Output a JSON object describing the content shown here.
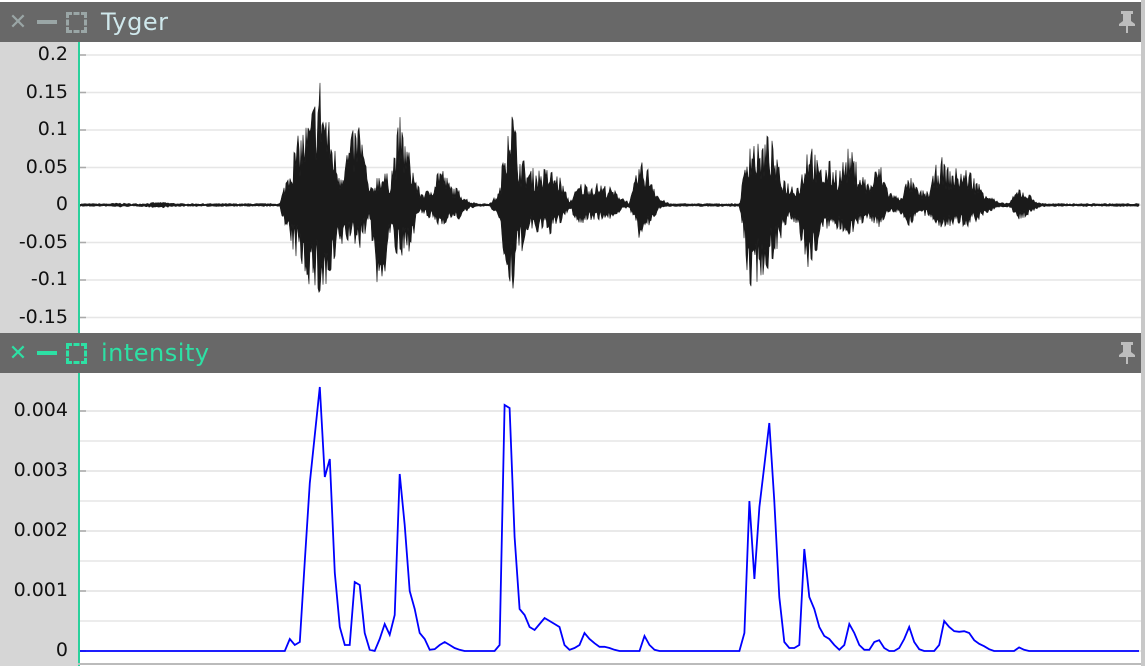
{
  "panels": [
    {
      "title": "Tyger",
      "title_color": "#cfe8ec",
      "icon_color": "#9aa6a6",
      "icons": [
        "close-icon",
        "minimize-icon",
        "maximize-icon",
        "pin-icon"
      ]
    },
    {
      "title": "intensity",
      "title_color": "#2de0a4",
      "icon_color": "#2de0a4",
      "icons": [
        "close-icon",
        "minimize-icon",
        "maximize-icon",
        "pin-icon"
      ]
    }
  ],
  "colors": {
    "header": "#686868",
    "gutter": "#d6d6d6",
    "axis": "#2ad19c",
    "grid": "#e6e6e6",
    "waveform": "#1a1a1a",
    "intensity": "#0000ff"
  },
  "chart_data": [
    {
      "type": "area",
      "ylim": [
        -0.16,
        0.22
      ],
      "yticks": [
        "0.2",
        "0.15",
        "0.1",
        "0.05",
        "0",
        "-0.05",
        "-0.1",
        "-0.15"
      ],
      "ytick_values": [
        0.2,
        0.15,
        0.1,
        0.05,
        0,
        -0.05,
        -0.1,
        -0.15
      ],
      "grid": true,
      "upper": [
        0.002,
        0.002,
        0.002,
        0.002,
        0.003,
        0.002,
        0.002,
        0.003,
        0.004,
        0.003,
        0.002,
        0.002,
        0.002,
        0.002,
        0.002,
        0.002,
        0.002,
        0.002,
        0.002,
        0.002,
        0.002,
        0.06,
        0.1,
        0.12,
        0.18,
        0.11,
        0.05,
        0.09,
        0.12,
        0.02,
        0.05,
        0.04,
        0.12,
        0.07,
        0.02,
        0.02,
        0.06,
        0.03,
        0.02,
        0.005,
        0.002,
        0.002,
        0.02,
        0.16,
        0.07,
        0.05,
        0.05,
        0.05,
        0.04,
        0.005,
        0.03,
        0.03,
        0.03,
        0.025,
        0.015,
        0.003,
        0.06,
        0.05,
        0.01,
        0.002,
        0.002,
        0.002,
        0.002,
        0.002,
        0.002,
        0.002,
        0.002,
        0.1,
        0.08,
        0.1,
        0.05,
        0.03,
        0.03,
        0.1,
        0.05,
        0.06,
        0.05,
        0.08,
        0.05,
        0.03,
        0.06,
        0.02,
        0.01,
        0.04,
        0.02,
        0.02,
        0.07,
        0.05,
        0.05,
        0.05,
        0.03,
        0.015,
        0.003,
        0.003,
        0.025,
        0.015,
        0.003,
        0.002,
        0.002,
        0.002,
        0.002,
        0.002,
        0.002,
        0.002,
        0.002,
        0.002,
        0.002
      ],
      "lower": [
        -0.002,
        -0.002,
        -0.002,
        -0.002,
        -0.003,
        -0.002,
        -0.002,
        -0.003,
        -0.004,
        -0.003,
        -0.002,
        -0.002,
        -0.002,
        -0.002,
        -0.002,
        -0.002,
        -0.002,
        -0.002,
        -0.002,
        -0.002,
        -0.002,
        -0.06,
        -0.08,
        -0.11,
        -0.13,
        -0.12,
        -0.06,
        -0.05,
        -0.06,
        -0.02,
        -0.15,
        -0.04,
        -0.09,
        -0.06,
        -0.01,
        -0.02,
        -0.03,
        -0.02,
        -0.02,
        -0.005,
        -0.002,
        -0.002,
        -0.02,
        -0.15,
        -0.07,
        -0.04,
        -0.04,
        -0.04,
        -0.03,
        -0.005,
        -0.03,
        -0.02,
        -0.02,
        -0.02,
        -0.01,
        -0.003,
        -0.05,
        -0.03,
        -0.005,
        -0.002,
        -0.002,
        -0.002,
        -0.002,
        -0.002,
        -0.002,
        -0.002,
        -0.002,
        -0.12,
        -0.1,
        -0.09,
        -0.05,
        -0.02,
        -0.04,
        -0.1,
        -0.05,
        -0.03,
        -0.04,
        -0.04,
        -0.03,
        -0.02,
        -0.03,
        -0.01,
        -0.01,
        -0.03,
        -0.01,
        -0.02,
        -0.03,
        -0.03,
        -0.03,
        -0.03,
        -0.02,
        -0.01,
        -0.003,
        -0.003,
        -0.02,
        -0.015,
        -0.003,
        -0.002,
        -0.002,
        -0.002,
        -0.002,
        -0.002,
        -0.002,
        -0.002,
        -0.002,
        -0.002,
        -0.002
      ]
    },
    {
      "type": "line",
      "ylim": [
        -0.0002,
        0.0045
      ],
      "yticks": [
        "0.004",
        "0.003",
        "0.002",
        "0.001",
        "0"
      ],
      "ytick_values": [
        0.004,
        0.003,
        0.002,
        0.001,
        0
      ],
      "minor_grid_step": 0.0005,
      "grid": true,
      "values": [
        0,
        0,
        0,
        0,
        0,
        0,
        0,
        0,
        0,
        0,
        0,
        0,
        0,
        0,
        0,
        0,
        0,
        0,
        0,
        0,
        0,
        0,
        0,
        0,
        0,
        0,
        0,
        0,
        0,
        0,
        0,
        0,
        0,
        0,
        0,
        0,
        0,
        0,
        0,
        0,
        0,
        0,
        0.0002,
        0.0001,
        0.00015,
        0.0015,
        0.0028,
        0.0036,
        0.0044,
        0.0029,
        0.0032,
        0.0013,
        0.0004,
        0.0001,
        0.0001,
        0.00115,
        0.0011,
        0.0003,
        2e-05,
        0,
        0.0002,
        0.00045,
        0.00027,
        0.0006,
        0.00295,
        0.0021,
        0.001,
        0.0007,
        0.0003,
        0.0002,
        2e-05,
        3e-05,
        0.0001,
        0.00015,
        0.0001,
        5e-05,
        2e-05,
        0,
        0,
        0,
        0,
        0,
        0,
        0,
        0.0001,
        0.0041,
        0.00405,
        0.0019,
        0.0007,
        0.0006,
        0.0004,
        0.00035,
        0.00045,
        0.00055,
        0.0005,
        0.00045,
        0.0004,
        0.0001,
        2e-05,
        5e-05,
        0.0001,
        0.0003,
        0.0002,
        0.00013,
        7e-05,
        7e-05,
        5e-05,
        2e-05,
        0,
        0,
        0,
        0,
        0,
        0.00025,
        0.0001,
        2e-05,
        0,
        0,
        0,
        0,
        0,
        0,
        0,
        0,
        0,
        0,
        0,
        0,
        0,
        0,
        0,
        0,
        0,
        0.0003,
        0.0025,
        0.0012,
        0.0024,
        0.0031,
        0.0038,
        0.0025,
        0.0009,
        0.00015,
        5e-05,
        5e-05,
        0.0001,
        0.0017,
        0.0009,
        0.0007,
        0.0004,
        0.00025,
        0.0002,
        0.0001,
        2e-05,
        0.0001,
        0.00045,
        0.0003,
        0.0001,
        2e-05,
        2e-05,
        0.00015,
        0.00018,
        5e-05,
        0,
        0,
        5e-05,
        0.0002,
        0.0004,
        0.00015,
        3e-05,
        0,
        0,
        0,
        0.0001,
        0.0005,
        0.0004,
        0.00033,
        0.00032,
        0.00033,
        0.0003,
        0.00018,
        0.00012,
        8e-05,
        3e-05,
        0,
        0,
        0,
        0,
        0,
        6e-05,
        2e-05,
        0,
        0,
        0,
        0,
        0,
        0,
        0,
        0,
        0,
        0,
        0,
        0,
        0,
        0,
        0,
        0,
        0,
        0,
        0,
        0,
        0,
        0,
        0
      ]
    }
  ]
}
